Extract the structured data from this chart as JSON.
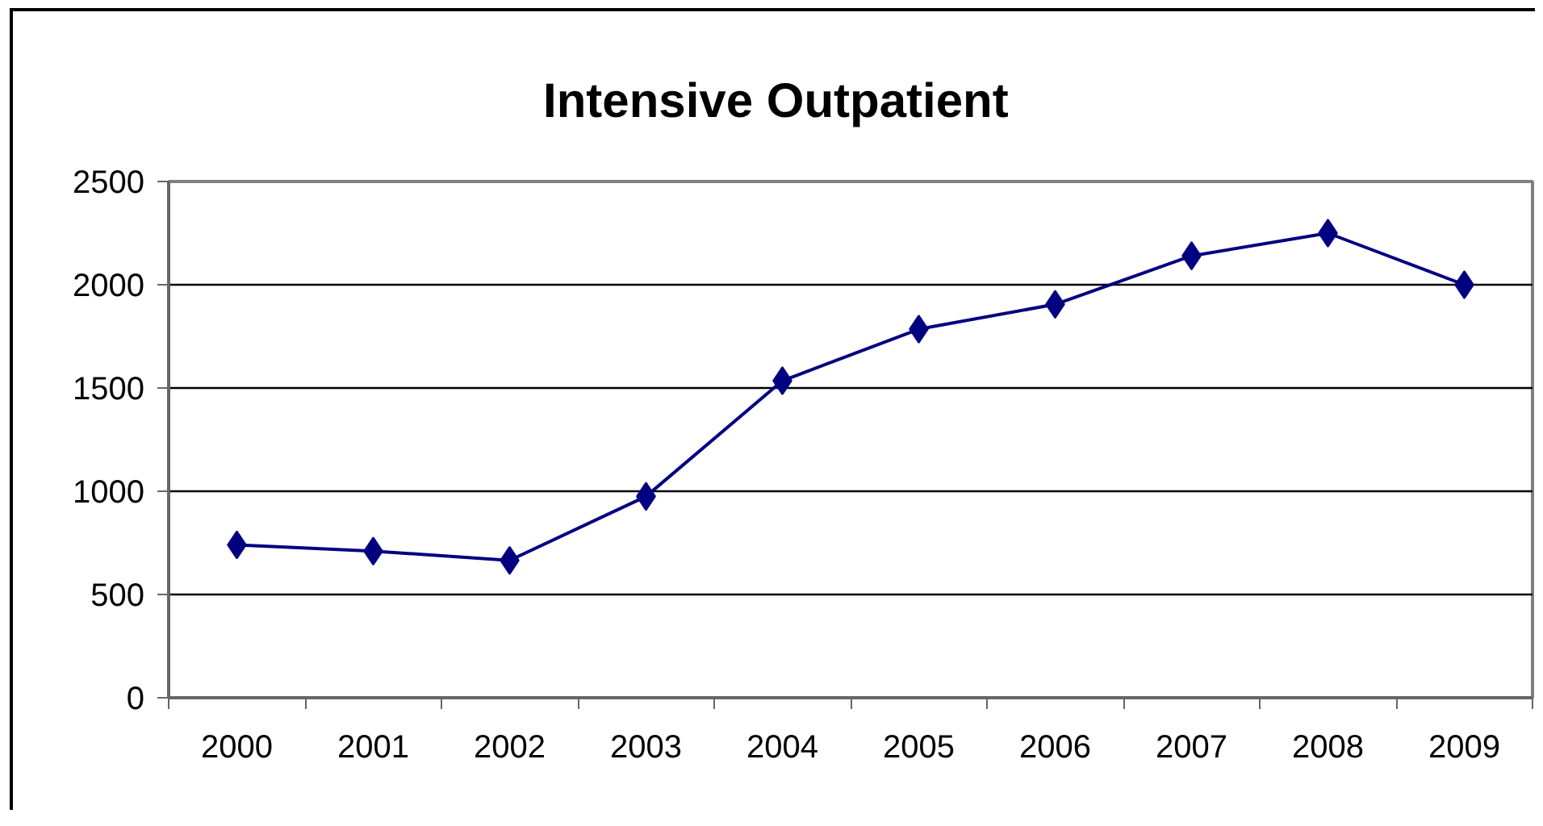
{
  "chart_data": {
    "type": "line",
    "title": "Intensive Outpatient",
    "categories": [
      "2000",
      "2001",
      "2002",
      "2003",
      "2004",
      "2005",
      "2006",
      "2007",
      "2008",
      "2009"
    ],
    "series": [
      {
        "color": "#000080",
        "values": [
          740,
          710,
          665,
          975,
          1535,
          1785,
          1905,
          2140,
          2250,
          2000
        ]
      }
    ],
    "ylim": [
      0,
      2500
    ],
    "yticks": [
      0,
      500,
      1000,
      1500,
      2000,
      2500
    ],
    "grid": "y",
    "marker": "diamond",
    "line_style": "solid"
  }
}
